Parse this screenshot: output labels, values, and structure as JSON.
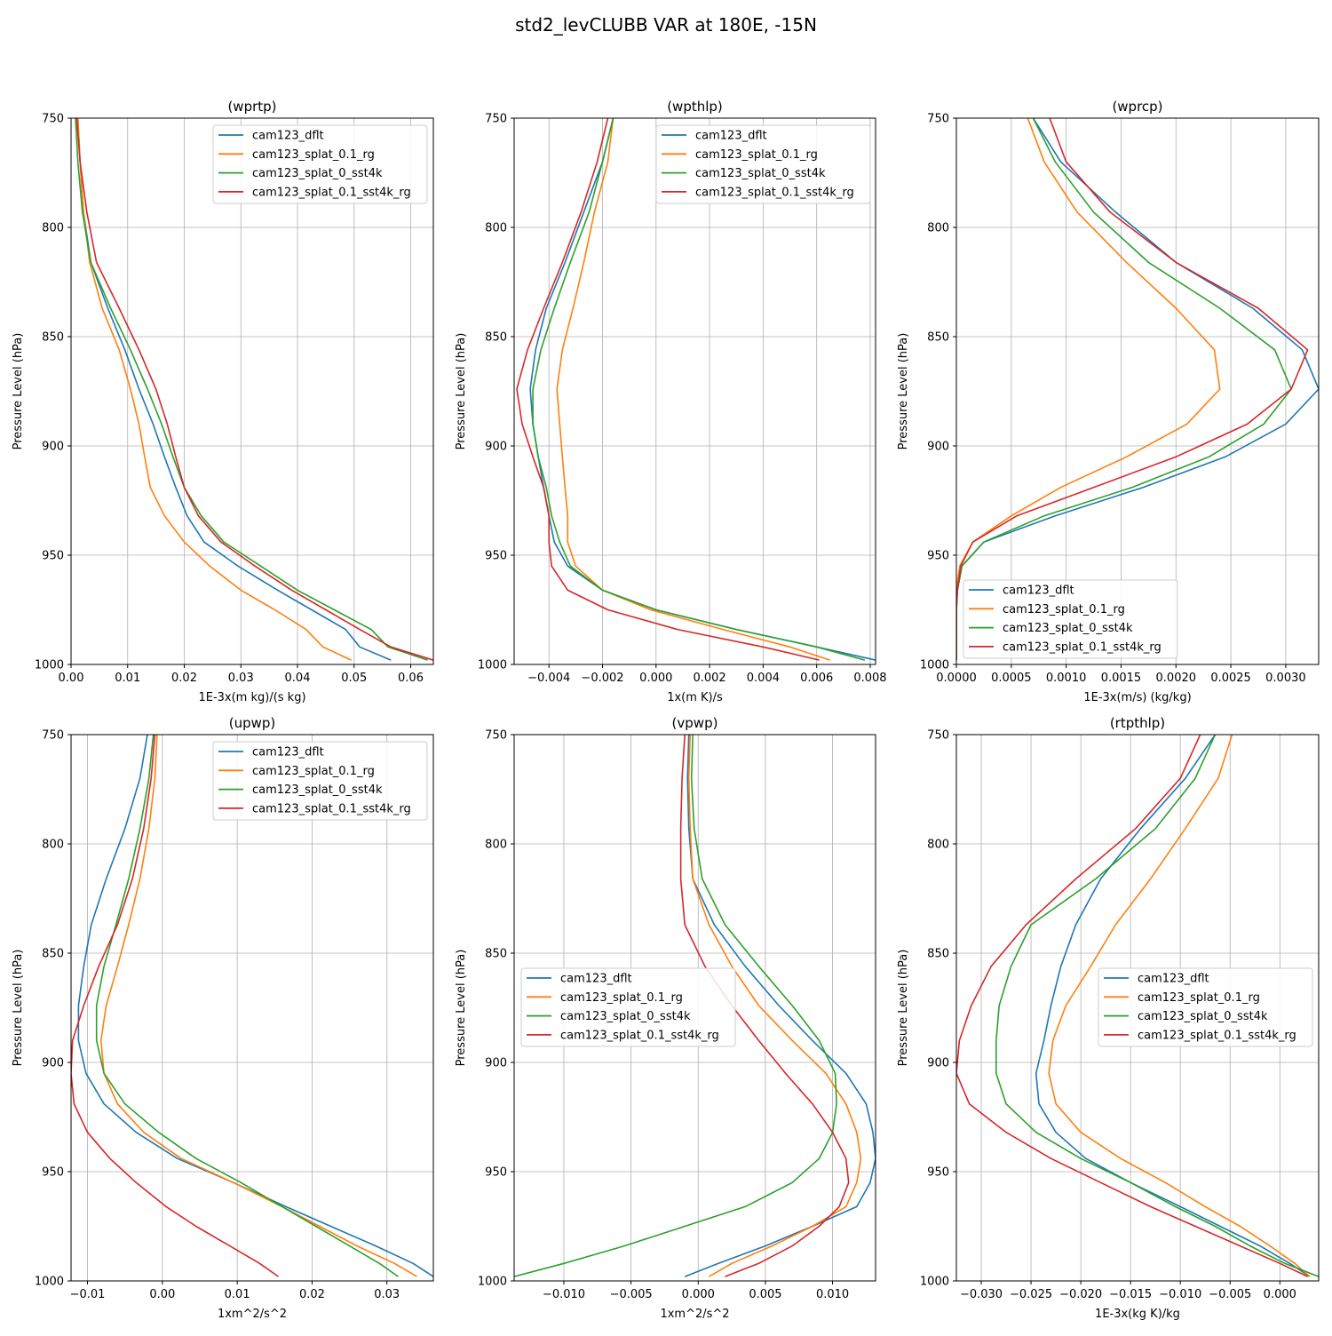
{
  "figure": {
    "suptitle": "std2_levCLUBB VAR at 180E, -15N"
  },
  "colors": {
    "cam123_dflt": "#1f77b4",
    "cam123_splat_0.1_rg": "#ff7f0e",
    "cam123_splat_0_sst4k": "#2ca02c",
    "cam123_splat_0.1_sst4k_rg": "#d62728"
  },
  "chart_data": [
    {
      "type": "line",
      "title": "(wprtp)",
      "xlabel": "1E-3x(m kg)/(s kg)",
      "ylabel": "Pressure Level (hPa)",
      "xlim": [
        0,
        0.064
      ],
      "ylim": [
        1000,
        750
      ],
      "grid": true,
      "legend_loc": "upper right",
      "xticks": [
        0,
        0.01,
        0.02,
        0.03,
        0.04,
        0.05,
        0.06
      ],
      "xtick_labels": [
        "0.00",
        "0.01",
        "0.02",
        "0.03",
        "0.04",
        "0.05",
        "0.06"
      ],
      "yticks": [
        750,
        800,
        850,
        900,
        950,
        1000
      ],
      "ytick_labels": [
        "750",
        "800",
        "850",
        "900",
        "950",
        "1000"
      ],
      "y": [
        750,
        770,
        793,
        816,
        837,
        856,
        874,
        890,
        905,
        919,
        932,
        944,
        955,
        966,
        975,
        984,
        992,
        998
      ],
      "series": [
        {
          "name": "cam123_dflt",
          "color": "#1f77b4",
          "x": [
            0.0012,
            0.0016,
            0.0022,
            0.0035,
            0.0065,
            0.0095,
            0.012,
            0.0145,
            0.0165,
            0.0185,
            0.0205,
            0.0235,
            0.0295,
            0.0365,
            0.0425,
            0.0485,
            0.051,
            0.0565
          ]
        },
        {
          "name": "cam123_splat_0.1_rg",
          "color": "#ff7f0e",
          "x": [
            0.0012,
            0.0016,
            0.0022,
            0.0033,
            0.0055,
            0.0085,
            0.0105,
            0.012,
            0.013,
            0.014,
            0.0165,
            0.02,
            0.0245,
            0.03,
            0.036,
            0.0415,
            0.0445,
            0.0495
          ]
        },
        {
          "name": "cam123_splat_0_sst4k",
          "color": "#2ca02c",
          "x": [
            0.0008,
            0.0012,
            0.002,
            0.0035,
            0.007,
            0.0105,
            0.0135,
            0.016,
            0.018,
            0.02,
            0.023,
            0.027,
            0.0335,
            0.04,
            0.0465,
            0.053,
            0.056,
            0.063
          ]
        },
        {
          "name": "cam123_splat_0.1_sst4k_rg",
          "color": "#d62728",
          "x": [
            0.001,
            0.0016,
            0.0028,
            0.0045,
            0.0085,
            0.012,
            0.015,
            0.017,
            0.0185,
            0.02,
            0.0225,
            0.0265,
            0.0325,
            0.039,
            0.045,
            0.051,
            0.0565,
            0.064
          ]
        }
      ]
    },
    {
      "type": "line",
      "title": "(wpthlp)",
      "xlabel": "1x(m K)/s",
      "ylabel": "Pressure Level (hPa)",
      "xlim": [
        -0.0053,
        0.0082
      ],
      "ylim": [
        1000,
        750
      ],
      "grid": true,
      "legend_loc": "upper right",
      "xticks": [
        -0.004,
        -0.002,
        0,
        0.002,
        0.004,
        0.006,
        0.008
      ],
      "xtick_labels": [
        "−0.004",
        "−0.002",
        "0.000",
        "0.002",
        "0.004",
        "0.006",
        "0.008"
      ],
      "yticks": [
        750,
        800,
        850,
        900,
        950,
        1000
      ],
      "ytick_labels": [
        "750",
        "800",
        "850",
        "900",
        "950",
        "1000"
      ],
      "y": [
        750,
        770,
        793,
        816,
        837,
        856,
        874,
        890,
        905,
        919,
        932,
        944,
        955,
        966,
        975,
        984,
        992,
        998
      ],
      "series": [
        {
          "name": "cam123_dflt",
          "color": "#1f77b4",
          "x": [
            -0.0016,
            -0.002,
            -0.0027,
            -0.0034,
            -0.0041,
            -0.0045,
            -0.0047,
            -0.0046,
            -0.0044,
            -0.0042,
            -0.004,
            -0.0038,
            -0.0033,
            -0.002,
            0.0,
            0.003,
            0.006,
            0.0082
          ]
        },
        {
          "name": "cam123_splat_0.1_rg",
          "color": "#ff7f0e",
          "x": [
            -0.0016,
            -0.0018,
            -0.0023,
            -0.0027,
            -0.0031,
            -0.0035,
            -0.0037,
            -0.0036,
            -0.0035,
            -0.0034,
            -0.0033,
            -0.0033,
            -0.003,
            -0.002,
            -0.0002,
            0.0025,
            0.005,
            0.0065
          ]
        },
        {
          "name": "cam123_splat_0_sst4k",
          "color": "#2ca02c",
          "x": [
            -0.0016,
            -0.002,
            -0.0025,
            -0.0032,
            -0.0038,
            -0.0043,
            -0.0046,
            -0.0046,
            -0.0044,
            -0.0041,
            -0.0039,
            -0.0036,
            -0.0032,
            -0.002,
            0.0,
            0.003,
            0.006,
            0.0078
          ]
        },
        {
          "name": "cam123_splat_0.1_sst4k_rg",
          "color": "#d62728",
          "x": [
            -0.0018,
            -0.0022,
            -0.0028,
            -0.0035,
            -0.0042,
            -0.0048,
            -0.0052,
            -0.005,
            -0.0046,
            -0.0042,
            -0.004,
            -0.004,
            -0.0039,
            -0.0033,
            -0.0018,
            0.0008,
            0.004,
            0.0061
          ]
        }
      ]
    },
    {
      "type": "line",
      "title": "(wprcp)",
      "xlabel": "1E-3x(m/s) (kg/kg)",
      "ylabel": "Pressure Level (hPa)",
      "xlim": [
        0,
        0.0033
      ],
      "ylim": [
        1000,
        750
      ],
      "grid": true,
      "legend_loc": "lower left",
      "xticks": [
        0,
        0.0005,
        0.001,
        0.0015,
        0.002,
        0.0025,
        0.003
      ],
      "xtick_labels": [
        "0.0000",
        "0.0005",
        "0.0010",
        "0.0015",
        "0.0020",
        "0.0025",
        "0.0030"
      ],
      "yticks": [
        750,
        800,
        850,
        900,
        950,
        1000
      ],
      "ytick_labels": [
        "750",
        "800",
        "850",
        "900",
        "950",
        "1000"
      ],
      "y": [
        750,
        770,
        793,
        816,
        837,
        856,
        874,
        890,
        905,
        919,
        932,
        944,
        955,
        966,
        975,
        984,
        992,
        998
      ],
      "series": [
        {
          "name": "cam123_dflt",
          "color": "#1f77b4",
          "x": [
            0.0007,
            0.00095,
            0.00145,
            0.002,
            0.0027,
            0.00315,
            0.0033,
            0.003,
            0.00245,
            0.0017,
            0.0009,
            0.00025,
            5e-05,
            1e-05,
            0,
            0,
            0,
            0
          ]
        },
        {
          "name": "cam123_splat_0.1_rg",
          "color": "#ff7f0e",
          "x": [
            0.00065,
            0.0008,
            0.0011,
            0.00155,
            0.002,
            0.00235,
            0.0024,
            0.0021,
            0.00155,
            0.00095,
            0.0005,
            0.00015,
            3e-05,
            0,
            0,
            0,
            0,
            0
          ]
        },
        {
          "name": "cam123_splat_0_sst4k",
          "color": "#2ca02c",
          "x": [
            0.0007,
            0.0009,
            0.00125,
            0.00175,
            0.0024,
            0.0029,
            0.00305,
            0.0028,
            0.0023,
            0.0016,
            0.0008,
            0.00025,
            5e-05,
            1e-05,
            0,
            0,
            0,
            0
          ]
        },
        {
          "name": "cam123_splat_0.1_sst4k_rg",
          "color": "#d62728",
          "x": [
            0.00085,
            0.001,
            0.0014,
            0.002,
            0.00275,
            0.0032,
            0.00305,
            0.00265,
            0.002,
            0.00125,
            0.00055,
            0.00015,
            4e-05,
            1e-05,
            0,
            0,
            0,
            0
          ]
        }
      ]
    },
    {
      "type": "line",
      "title": "(upwp)",
      "xlabel": "1xm^2/s^2",
      "ylabel": "Pressure Level (hPa)",
      "xlim": [
        -0.0122,
        0.0362
      ],
      "ylim": [
        1000,
        750
      ],
      "grid": true,
      "legend_loc": "upper right",
      "xticks": [
        -0.01,
        0,
        0.01,
        0.02,
        0.03
      ],
      "xtick_labels": [
        "−0.01",
        "0.00",
        "0.01",
        "0.02",
        "0.03"
      ],
      "yticks": [
        750,
        800,
        850,
        900,
        950,
        1000
      ],
      "ytick_labels": [
        "750",
        "800",
        "850",
        "900",
        "950",
        "1000"
      ],
      "y": [
        750,
        770,
        793,
        816,
        837,
        856,
        874,
        890,
        905,
        919,
        932,
        944,
        955,
        966,
        975,
        984,
        992,
        998
      ],
      "series": [
        {
          "name": "cam123_dflt",
          "color": "#1f77b4",
          "x": [
            -0.002,
            -0.003,
            -0.005,
            -0.0075,
            -0.0095,
            -0.0105,
            -0.0112,
            -0.0112,
            -0.0102,
            -0.0078,
            -0.0035,
            0.002,
            0.0095,
            0.0165,
            0.0225,
            0.0285,
            0.0335,
            0.0362
          ]
        },
        {
          "name": "cam123_splat_0.1_rg",
          "color": "#ff7f0e",
          "x": [
            -0.0007,
            -0.001,
            -0.0018,
            -0.003,
            -0.0045,
            -0.006,
            -0.0075,
            -0.0082,
            -0.0078,
            -0.006,
            -0.0025,
            0.0025,
            0.0095,
            0.016,
            0.021,
            0.026,
            0.031,
            0.034
          ]
        },
        {
          "name": "cam123_splat_0_sst4k",
          "color": "#2ca02c",
          "x": [
            -0.0012,
            -0.0018,
            -0.003,
            -0.0045,
            -0.0062,
            -0.0078,
            -0.0088,
            -0.0088,
            -0.0078,
            -0.005,
            -0.0005,
            0.0045,
            0.0105,
            0.016,
            0.0205,
            0.025,
            0.029,
            0.0315
          ]
        },
        {
          "name": "cam123_splat_0.1_sst4k_rg",
          "color": "#d62728",
          "x": [
            -0.001,
            -0.0015,
            -0.0025,
            -0.004,
            -0.006,
            -0.0085,
            -0.0105,
            -0.012,
            -0.0122,
            -0.0118,
            -0.01,
            -0.007,
            -0.0035,
            0.0005,
            0.0045,
            0.009,
            0.013,
            0.0155
          ]
        }
      ]
    },
    {
      "type": "line",
      "title": "(vpwp)",
      "xlabel": "1xm^2/s^2",
      "ylabel": "Pressure Level (hPa)",
      "xlim": [
        -0.0137,
        0.0132
      ],
      "ylim": [
        1000,
        750
      ],
      "grid": true,
      "legend_loc": "center left",
      "xticks": [
        -0.01,
        -0.005,
        0,
        0.005,
        0.01
      ],
      "xtick_labels": [
        "−0.010",
        "−0.005",
        "0.000",
        "0.005",
        "0.010"
      ],
      "yticks": [
        750,
        800,
        850,
        900,
        950,
        1000
      ],
      "ytick_labels": [
        "750",
        "800",
        "850",
        "900",
        "950",
        "1000"
      ],
      "y": [
        750,
        770,
        793,
        816,
        837,
        856,
        874,
        890,
        905,
        919,
        932,
        944,
        955,
        966,
        975,
        984,
        992,
        998
      ],
      "series": [
        {
          "name": "cam123_dflt",
          "color": "#1f77b4",
          "x": [
            -0.0007,
            -0.0008,
            -0.0007,
            -0.0004,
            0.0012,
            0.0035,
            0.006,
            0.0085,
            0.011,
            0.0125,
            0.013,
            0.0132,
            0.0128,
            0.0118,
            0.0085,
            0.005,
            0.0015,
            -0.001
          ]
        },
        {
          "name": "cam123_splat_0.1_rg",
          "color": "#ff7f0e",
          "x": [
            -0.0006,
            -0.0007,
            -0.0006,
            -0.0004,
            0.0008,
            0.0025,
            0.0045,
            0.007,
            0.0095,
            0.011,
            0.0118,
            0.0121,
            0.0118,
            0.011,
            0.0085,
            0.0055,
            0.0025,
            0.0008
          ]
        },
        {
          "name": "cam123_splat_0_sst4k",
          "color": "#2ca02c",
          "x": [
            -0.0004,
            -0.0005,
            -0.0003,
            0.0003,
            0.002,
            0.0045,
            0.007,
            0.009,
            0.0102,
            0.0103,
            0.01,
            0.009,
            0.007,
            0.0035,
            -0.001,
            -0.0055,
            -0.01,
            -0.0137
          ]
        },
        {
          "name": "cam123_splat_0.1_sst4k_rg",
          "color": "#d62728",
          "x": [
            -0.001,
            -0.0012,
            -0.0013,
            -0.0013,
            -0.001,
            0.0005,
            0.0025,
            0.0045,
            0.0065,
            0.0085,
            0.01,
            0.011,
            0.0112,
            0.0105,
            0.009,
            0.007,
            0.0045,
            0.002
          ]
        }
      ]
    },
    {
      "type": "line",
      "title": "(rtpthlp)",
      "xlabel": "1E-3x(kg K)/kg",
      "ylabel": "Pressure Level (hPa)",
      "xlim": [
        -0.0325,
        0.0039
      ],
      "ylim": [
        1000,
        750
      ],
      "grid": true,
      "legend_loc": "center right",
      "xticks": [
        -0.03,
        -0.025,
        -0.02,
        -0.015,
        -0.01,
        -0.005,
        0
      ],
      "xtick_labels": [
        "−0.030",
        "−0.025",
        "−0.020",
        "−0.015",
        "−0.010",
        "−0.005",
        "0.000"
      ],
      "yticks": [
        750,
        800,
        850,
        900,
        950,
        1000
      ],
      "ytick_labels": [
        "750",
        "800",
        "850",
        "900",
        "950",
        "1000"
      ],
      "y": [
        750,
        770,
        793,
        816,
        837,
        856,
        874,
        890,
        905,
        919,
        932,
        944,
        955,
        966,
        975,
        984,
        992,
        998
      ],
      "series": [
        {
          "name": "cam123_dflt",
          "color": "#1f77b4",
          "x": [
            -0.0065,
            -0.0095,
            -0.014,
            -0.018,
            -0.0205,
            -0.022,
            -0.023,
            -0.0237,
            -0.0245,
            -0.0242,
            -0.0225,
            -0.0195,
            -0.015,
            -0.01,
            -0.006,
            -0.002,
            0.001,
            0.003
          ]
        },
        {
          "name": "cam123_splat_0.1_rg",
          "color": "#ff7f0e",
          "x": [
            -0.0048,
            -0.0062,
            -0.0095,
            -0.013,
            -0.0165,
            -0.019,
            -0.0215,
            -0.0228,
            -0.0232,
            -0.0225,
            -0.02,
            -0.016,
            -0.0115,
            -0.0075,
            -0.004,
            -0.001,
            0.0015,
            0.003
          ]
        },
        {
          "name": "cam123_splat_0_sst4k",
          "color": "#2ca02c",
          "x": [
            -0.0065,
            -0.0085,
            -0.0125,
            -0.0185,
            -0.025,
            -0.027,
            -0.0282,
            -0.0285,
            -0.0285,
            -0.0275,
            -0.0245,
            -0.02,
            -0.015,
            -0.0105,
            -0.0065,
            -0.003,
            0.0005,
            0.0039
          ]
        },
        {
          "name": "cam123_splat_0.1_sst4k_rg",
          "color": "#d62728",
          "x": [
            -0.008,
            -0.01,
            -0.0145,
            -0.0205,
            -0.0255,
            -0.029,
            -0.031,
            -0.0322,
            -0.0325,
            -0.0312,
            -0.0275,
            -0.023,
            -0.018,
            -0.013,
            -0.0085,
            -0.004,
            0.0,
            0.0028
          ]
        }
      ]
    }
  ]
}
